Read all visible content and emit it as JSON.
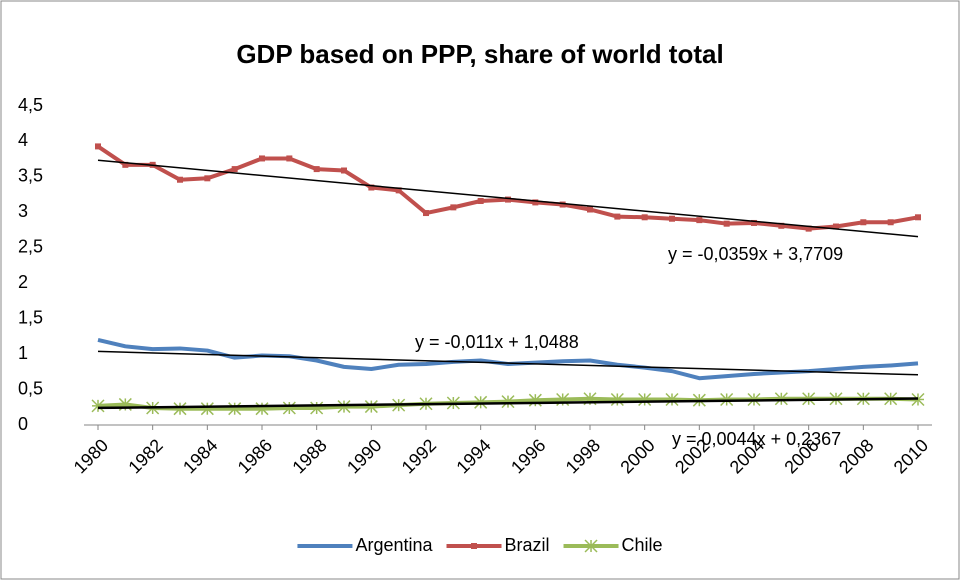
{
  "chart_data": {
    "type": "line",
    "title": "GDP based on PPP, share of world total",
    "x": [
      1980,
      1981,
      1982,
      1983,
      1984,
      1985,
      1986,
      1987,
      1988,
      1989,
      1990,
      1991,
      1992,
      1993,
      1994,
      1995,
      1996,
      1997,
      1998,
      1999,
      2000,
      2001,
      2002,
      2003,
      2004,
      2005,
      2006,
      2007,
      2008,
      2009,
      2010
    ],
    "xlim": [
      1980,
      2010
    ],
    "xticks": [
      1980,
      1982,
      1984,
      1986,
      1988,
      1990,
      1992,
      1994,
      1996,
      1998,
      2000,
      2002,
      2004,
      2006,
      2008,
      2010
    ],
    "ylim": [
      0,
      4.5
    ],
    "yticks": [
      {
        "value": 0,
        "label": "0"
      },
      {
        "value": 0.5,
        "label": "0,5"
      },
      {
        "value": 1,
        "label": "1"
      },
      {
        "value": 1.5,
        "label": "1,5"
      },
      {
        "value": 2,
        "label": "2"
      },
      {
        "value": 2.5,
        "label": "2,5"
      },
      {
        "value": 3,
        "label": "3"
      },
      {
        "value": 3.5,
        "label": "3,5"
      },
      {
        "value": 4,
        "label": "4"
      },
      {
        "value": 4.5,
        "label": "4,5"
      }
    ],
    "grid": false,
    "legend": "bottom",
    "series": [
      {
        "name": "Argentina",
        "color": "#4f81bd",
        "marker": "none",
        "values": [
          1.2,
          1.11,
          1.07,
          1.08,
          1.05,
          0.95,
          0.98,
          0.97,
          0.91,
          0.82,
          0.79,
          0.85,
          0.86,
          0.89,
          0.91,
          0.86,
          0.88,
          0.9,
          0.91,
          0.85,
          0.81,
          0.76,
          0.66,
          0.69,
          0.72,
          0.74,
          0.76,
          0.79,
          0.82,
          0.84,
          0.87
        ]
      },
      {
        "name": "Brazil",
        "color": "#c0504d",
        "marker": "square",
        "values": [
          3.93,
          3.67,
          3.67,
          3.46,
          3.48,
          3.61,
          3.76,
          3.76,
          3.61,
          3.59,
          3.35,
          3.31,
          2.99,
          3.07,
          3.16,
          3.18,
          3.14,
          3.11,
          3.04,
          2.94,
          2.93,
          2.91,
          2.89,
          2.84,
          2.85,
          2.81,
          2.77,
          2.8,
          2.86,
          2.86,
          2.93
        ]
      },
      {
        "name": "Chile",
        "color": "#9bbb59",
        "marker": "asterisk",
        "values": [
          0.27,
          0.29,
          0.24,
          0.23,
          0.23,
          0.23,
          0.23,
          0.24,
          0.24,
          0.26,
          0.26,
          0.28,
          0.3,
          0.31,
          0.32,
          0.33,
          0.35,
          0.36,
          0.37,
          0.36,
          0.36,
          0.36,
          0.35,
          0.36,
          0.36,
          0.37,
          0.37,
          0.37,
          0.37,
          0.37,
          0.36
        ]
      }
    ],
    "trendlines": [
      {
        "label": "y = -0,0359x + 3,7709",
        "color": "#000000",
        "start": 3.735,
        "end": 2.658
      },
      {
        "label": "y = -0,011x + 1,0488",
        "color": "#000000",
        "start": 1.038,
        "end": 0.708
      },
      {
        "label": "y = 0,0044x + 0,2367",
        "color": "#000000",
        "start": 0.241,
        "end": 0.373
      }
    ]
  }
}
